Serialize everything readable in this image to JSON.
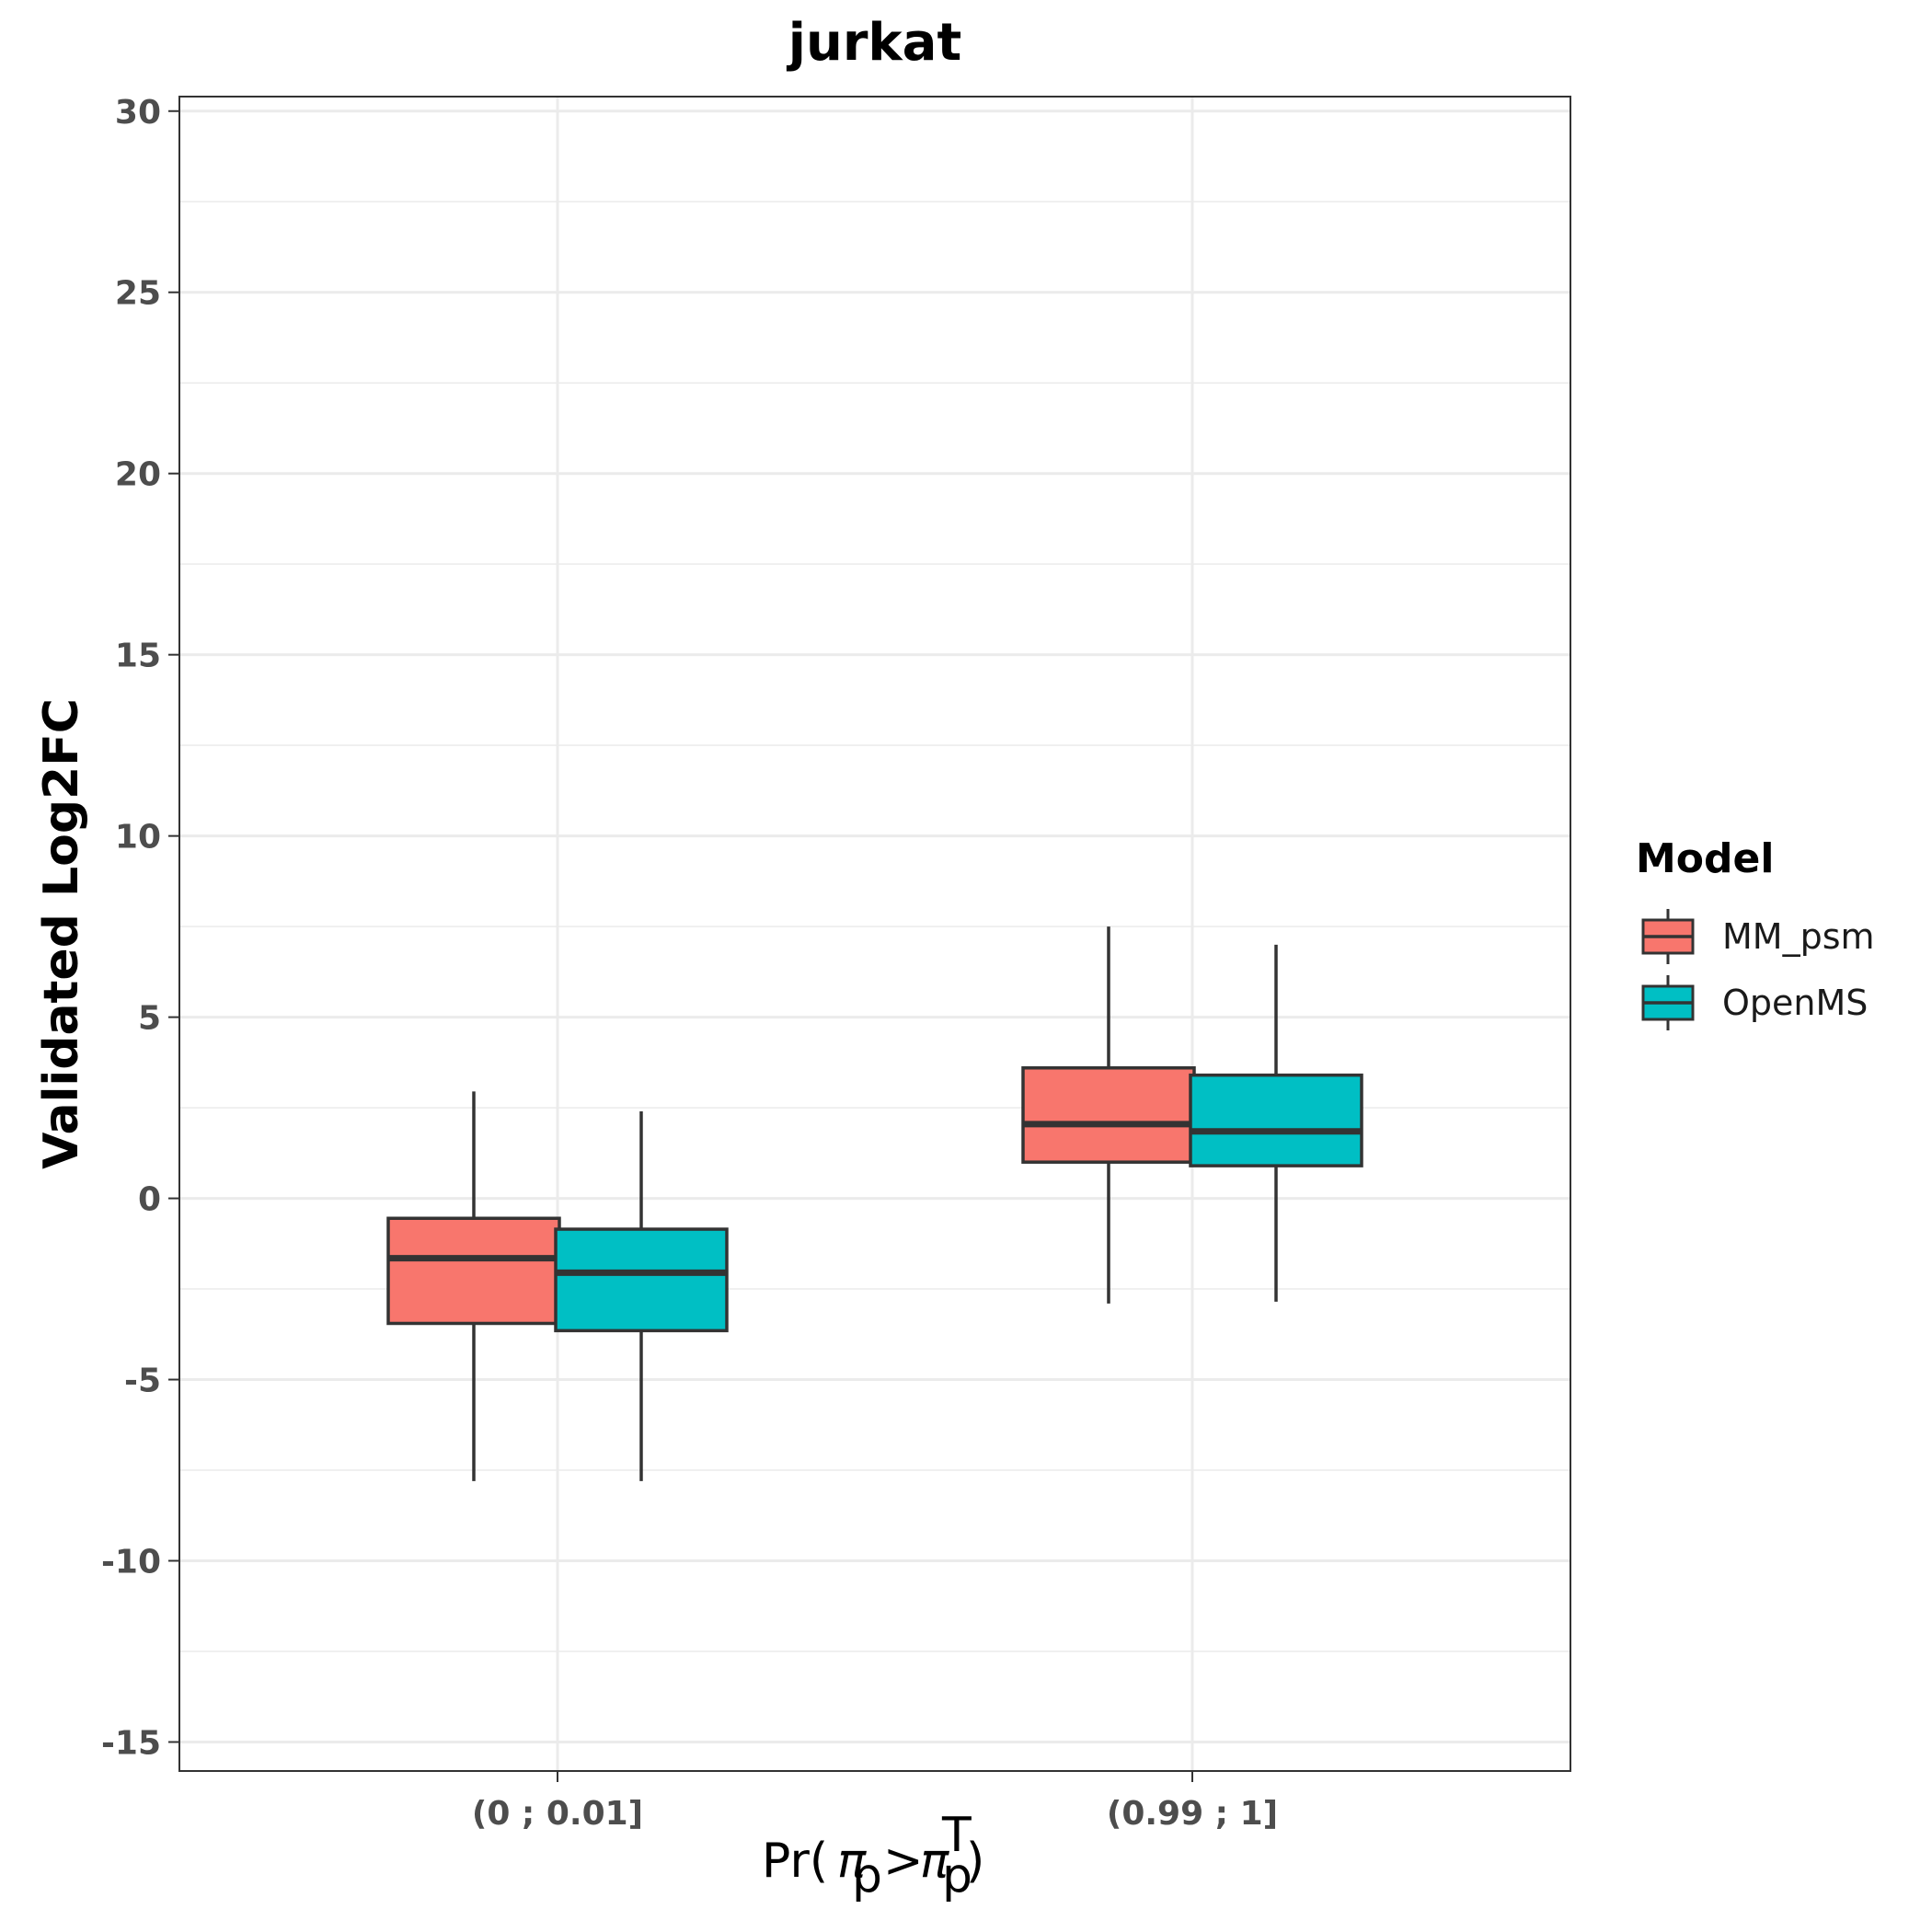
{
  "chart_data": {
    "type": "boxplot",
    "title": "jurkat",
    "xlabel": "Pr(π_p > π_p^T)",
    "ylabel": "Validated Log2FC",
    "ylim": [
      -15.8,
      30.4
    ],
    "yticks": [
      30,
      25,
      20,
      15,
      10,
      5,
      0,
      -5,
      -10,
      -15
    ],
    "ytick_labels": [
      "30",
      "25",
      "20",
      "15",
      "10",
      "5",
      "0",
      "-5",
      "-10",
      "-15"
    ],
    "categories": [
      "(0 ; 0.01]",
      "(0.99 ; 1]"
    ],
    "grid": true,
    "legend": {
      "title": "Model",
      "position": "right"
    },
    "series": [
      {
        "name": "MM_psm",
        "color": "#F8766D",
        "boxes": [
          {
            "whisker_low": -7.8,
            "q1": -3.45,
            "median": -1.65,
            "q3": -0.55,
            "whisker_high": 2.95
          },
          {
            "whisker_low": -2.9,
            "q1": 1.0,
            "median": 2.05,
            "q3": 3.6,
            "whisker_high": 7.5
          }
        ]
      },
      {
        "name": "OpenMS",
        "color": "#00BFC4",
        "boxes": [
          {
            "whisker_low": -7.8,
            "q1": -3.65,
            "median": -2.05,
            "q3": -0.85,
            "whisker_high": 2.4
          },
          {
            "whisker_low": -2.85,
            "q1": 0.9,
            "median": 1.85,
            "q3": 3.4,
            "whisker_high": 7.0
          }
        ]
      }
    ]
  }
}
